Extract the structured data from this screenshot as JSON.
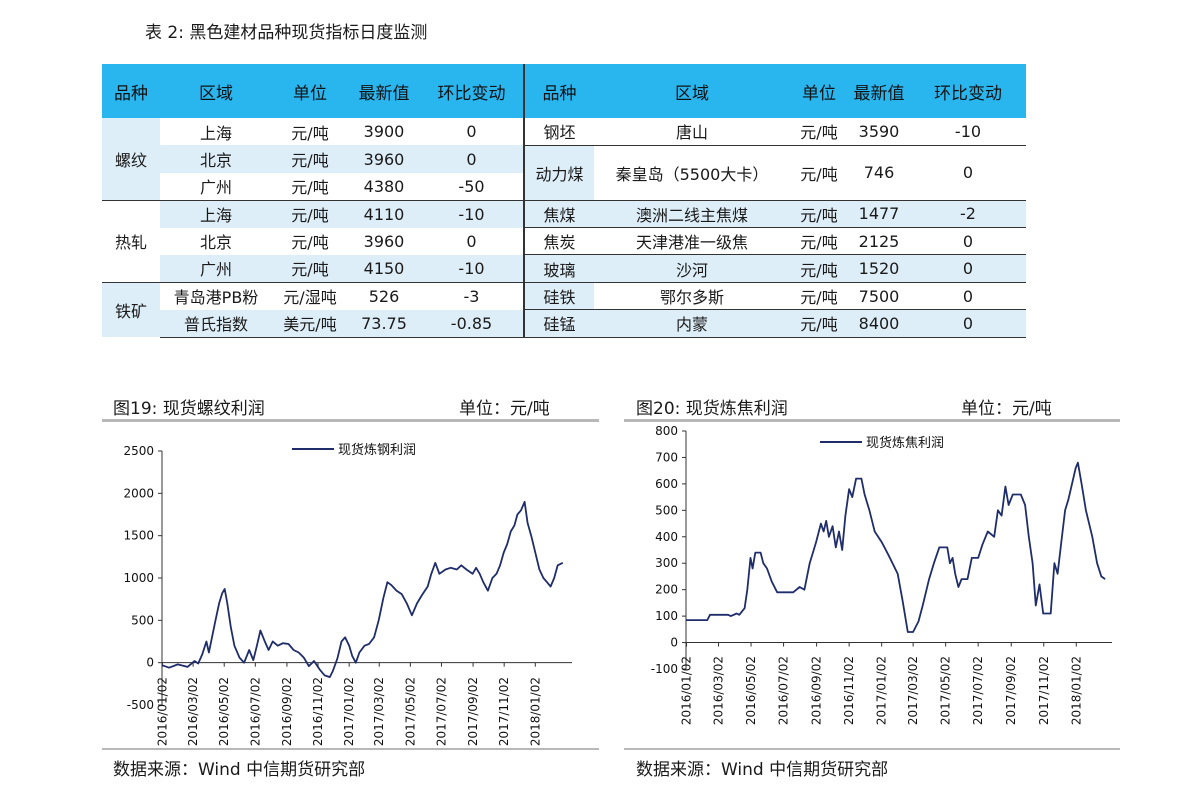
{
  "table": {
    "title": "表 2: 黑色建材品种现货指标日度监测",
    "headers_left": [
      "品种",
      "区域",
      "单位",
      "最新值",
      "环比变动"
    ],
    "headers_right": [
      "品种",
      "区域",
      "单位",
      "最新值",
      "环比变动"
    ],
    "rows": [
      {
        "lcat": "螺纹",
        "lreg": "上海",
        "lunit": "元/吨",
        "lval": "3900",
        "lchg": "0",
        "rcat": "钢坯",
        "rreg": "唐山",
        "runit": "元/吨",
        "rval": "3590",
        "rchg": "-10"
      },
      {
        "lcat": "",
        "lreg": "北京",
        "lunit": "元/吨",
        "lval": "3960",
        "lchg": "0",
        "rcat": "动力煤",
        "rreg": "秦皇岛（5500大卡）",
        "runit": "元/吨",
        "rval": "746",
        "rchg": "0"
      },
      {
        "lcat": "",
        "lreg": "广州",
        "lunit": "元/吨",
        "lval": "4380",
        "lchg": "-50",
        "rcat": "",
        "rreg": "",
        "runit": "",
        "rval": "",
        "rchg": ""
      },
      {
        "lcat": "热轧",
        "lreg": "上海",
        "lunit": "元/吨",
        "lval": "4110",
        "lchg": "-10",
        "rcat": "焦煤",
        "rreg": "澳洲二线主焦煤",
        "runit": "元/吨",
        "rval": "1477",
        "rchg": "-2"
      },
      {
        "lcat": "",
        "lreg": "北京",
        "lunit": "元/吨",
        "lval": "3960",
        "lchg": "0",
        "rcat": "焦炭",
        "rreg": "天津港准一级焦",
        "runit": "元/吨",
        "rval": "2125",
        "rchg": "0"
      },
      {
        "lcat": "",
        "lreg": "广州",
        "lunit": "元/吨",
        "lval": "4150",
        "lchg": "-10",
        "rcat": "玻璃",
        "rreg": "沙河",
        "runit": "元/吨",
        "rval": "1520",
        "rchg": "0"
      },
      {
        "lcat": "铁矿",
        "lreg": "青岛港PB粉",
        "lunit": "元/湿吨",
        "lval": "526",
        "lchg": "-3",
        "rcat": "硅铁",
        "rreg": "鄂尔多斯",
        "runit": "元/吨",
        "rval": "7500",
        "rchg": "0"
      },
      {
        "lcat": "",
        "lreg": "普氏指数",
        "lunit": "美元/吨",
        "lval": "73.75",
        "lchg": "-0.85",
        "rcat": "硅锰",
        "rreg": "内蒙",
        "runit": "元/吨",
        "rval": "8400",
        "rchg": "0"
      }
    ]
  },
  "fig19": {
    "title": "图19: 现货螺纹利润",
    "unit": "单位：元/吨",
    "source": "数据来源：Wind  中信期货研究部"
  },
  "fig20": {
    "title": "图20: 现货炼焦利润",
    "unit": "单位：元/吨",
    "source": "数据来源：Wind  中信期货研究部"
  },
  "chart_data": [
    {
      "type": "line",
      "title": "",
      "ylim": [
        -500,
        2500
      ],
      "yticks": [
        -500,
        0,
        500,
        1000,
        1500,
        2000,
        2500
      ],
      "x_start": "2016-01-01",
      "x_end": "2018-03-15",
      "xticks": [
        "2016/01/02",
        "2016/03/02",
        "2016/05/02",
        "2016/07/02",
        "2016/09/02",
        "2016/11/02",
        "2017/01/02",
        "2017/03/02",
        "2017/05/02",
        "2017/07/02",
        "2017/09/02",
        "2017/11/02",
        "2018/01/02"
      ],
      "legend": "top-left",
      "series": [
        {
          "name": "现货炼钢利润",
          "color": "#1f2d6b",
          "points": [
            [
              "2016-01-01",
              -30
            ],
            [
              "2016-01-15",
              -60
            ],
            [
              "2016-02-01",
              -20
            ],
            [
              "2016-02-20",
              -50
            ],
            [
              "2016-03-05",
              20
            ],
            [
              "2016-03-12",
              -10
            ],
            [
              "2016-03-20",
              100
            ],
            [
              "2016-03-28",
              250
            ],
            [
              "2016-04-02",
              120
            ],
            [
              "2016-04-08",
              300
            ],
            [
              "2016-04-15",
              500
            ],
            [
              "2016-04-22",
              700
            ],
            [
              "2016-04-28",
              820
            ],
            [
              "2016-05-03",
              870
            ],
            [
              "2016-05-08",
              700
            ],
            [
              "2016-05-15",
              420
            ],
            [
              "2016-05-22",
              200
            ],
            [
              "2016-06-01",
              60
            ],
            [
              "2016-06-10",
              0
            ],
            [
              "2016-06-20",
              150
            ],
            [
              "2016-06-28",
              30
            ],
            [
              "2016-07-05",
              200
            ],
            [
              "2016-07-12",
              380
            ],
            [
              "2016-07-20",
              260
            ],
            [
              "2016-07-28",
              150
            ],
            [
              "2016-08-05",
              250
            ],
            [
              "2016-08-15",
              200
            ],
            [
              "2016-08-25",
              230
            ],
            [
              "2016-09-05",
              220
            ],
            [
              "2016-09-15",
              150
            ],
            [
              "2016-09-25",
              120
            ],
            [
              "2016-10-05",
              60
            ],
            [
              "2016-10-15",
              -40
            ],
            [
              "2016-10-25",
              20
            ],
            [
              "2016-11-05",
              -80
            ],
            [
              "2016-11-15",
              -150
            ],
            [
              "2016-11-25",
              -170
            ],
            [
              "2016-12-01",
              -100
            ],
            [
              "2016-12-10",
              50
            ],
            [
              "2016-12-18",
              250
            ],
            [
              "2016-12-25",
              300
            ],
            [
              "2017-01-02",
              200
            ],
            [
              "2017-01-08",
              80
            ],
            [
              "2017-01-15",
              0
            ],
            [
              "2017-01-22",
              120
            ],
            [
              "2017-02-01",
              200
            ],
            [
              "2017-02-10",
              220
            ],
            [
              "2017-02-20",
              300
            ],
            [
              "2017-03-01",
              500
            ],
            [
              "2017-03-10",
              760
            ],
            [
              "2017-03-18",
              950
            ],
            [
              "2017-03-25",
              920
            ],
            [
              "2017-04-05",
              850
            ],
            [
              "2017-04-15",
              810
            ],
            [
              "2017-04-25",
              700
            ],
            [
              "2017-05-05",
              560
            ],
            [
              "2017-05-15",
              700
            ],
            [
              "2017-05-25",
              800
            ],
            [
              "2017-06-05",
              900
            ],
            [
              "2017-06-12",
              1050
            ],
            [
              "2017-06-20",
              1180
            ],
            [
              "2017-06-28",
              1050
            ],
            [
              "2017-07-10",
              1100
            ],
            [
              "2017-07-20",
              1120
            ],
            [
              "2017-08-01",
              1100
            ],
            [
              "2017-08-10",
              1150
            ],
            [
              "2017-08-20",
              1100
            ],
            [
              "2017-09-01",
              1050
            ],
            [
              "2017-09-08",
              1120
            ],
            [
              "2017-09-15",
              1050
            ],
            [
              "2017-09-22",
              950
            ],
            [
              "2017-10-01",
              850
            ],
            [
              "2017-10-10",
              1000
            ],
            [
              "2017-10-18",
              1050
            ],
            [
              "2017-10-25",
              1150
            ],
            [
              "2017-11-01",
              1300
            ],
            [
              "2017-11-08",
              1400
            ],
            [
              "2017-11-15",
              1550
            ],
            [
              "2017-11-22",
              1620
            ],
            [
              "2017-11-28",
              1750
            ],
            [
              "2017-12-05",
              1800
            ],
            [
              "2017-12-12",
              1900
            ],
            [
              "2017-12-18",
              1650
            ],
            [
              "2017-12-25",
              1500
            ],
            [
              "2018-01-02",
              1300
            ],
            [
              "2018-01-10",
              1100
            ],
            [
              "2018-01-18",
              1000
            ],
            [
              "2018-01-25",
              950
            ],
            [
              "2018-02-01",
              900
            ],
            [
              "2018-02-08",
              1000
            ],
            [
              "2018-02-15",
              1150
            ],
            [
              "2018-02-25",
              1180
            ]
          ]
        }
      ]
    },
    {
      "type": "line",
      "title": "",
      "ylim": [
        -100,
        800
      ],
      "yticks": [
        -100,
        0,
        100,
        200,
        300,
        400,
        500,
        600,
        700,
        800
      ],
      "x_start": "2016-01-01",
      "x_end": "2018-03-10",
      "xticks": [
        "2016/01/02",
        "2016/03/02",
        "2016/05/02",
        "2016/07/02",
        "2016/09/02",
        "2016/11/02",
        "2017/01/02",
        "2017/03/02",
        "2017/05/02",
        "2017/07/02",
        "2017/09/02",
        "2017/11/02",
        "2018/01/02"
      ],
      "legend": "top-left",
      "series": [
        {
          "name": "现货炼焦利润",
          "color": "#1f2d6b",
          "points": [
            [
              "2016-01-01",
              85
            ],
            [
              "2016-02-10",
              85
            ],
            [
              "2016-02-15",
              105
            ],
            [
              "2016-03-20",
              105
            ],
            [
              "2016-03-25",
              100
            ],
            [
              "2016-04-05",
              110
            ],
            [
              "2016-04-10",
              105
            ],
            [
              "2016-04-20",
              130
            ],
            [
              "2016-04-25",
              200
            ],
            [
              "2016-05-01",
              320
            ],
            [
              "2016-05-05",
              280
            ],
            [
              "2016-05-10",
              340
            ],
            [
              "2016-05-20",
              340
            ],
            [
              "2016-05-25",
              300
            ],
            [
              "2016-06-01",
              280
            ],
            [
              "2016-06-10",
              230
            ],
            [
              "2016-06-20",
              190
            ],
            [
              "2016-07-02",
              190
            ],
            [
              "2016-07-20",
              190
            ],
            [
              "2016-08-01",
              210
            ],
            [
              "2016-08-10",
              200
            ],
            [
              "2016-08-20",
              300
            ],
            [
              "2016-09-01",
              380
            ],
            [
              "2016-09-10",
              450
            ],
            [
              "2016-09-15",
              420
            ],
            [
              "2016-09-20",
              460
            ],
            [
              "2016-09-25",
              400
            ],
            [
              "2016-10-02",
              440
            ],
            [
              "2016-10-08",
              360
            ],
            [
              "2016-10-14",
              420
            ],
            [
              "2016-10-20",
              350
            ],
            [
              "2016-10-26",
              480
            ],
            [
              "2016-11-02",
              580
            ],
            [
              "2016-11-08",
              550
            ],
            [
              "2016-11-15",
              620
            ],
            [
              "2016-11-25",
              620
            ],
            [
              "2016-12-01",
              560
            ],
            [
              "2016-12-10",
              500
            ],
            [
              "2016-12-20",
              420
            ],
            [
              "2017-01-02",
              380
            ],
            [
              "2017-01-15",
              330
            ],
            [
              "2017-02-01",
              260
            ],
            [
              "2017-02-10",
              160
            ],
            [
              "2017-02-20",
              40
            ],
            [
              "2017-03-02",
              40
            ],
            [
              "2017-03-12",
              80
            ],
            [
              "2017-03-20",
              140
            ],
            [
              "2017-04-01",
              240
            ],
            [
              "2017-04-10",
              300
            ],
            [
              "2017-04-20",
              360
            ],
            [
              "2017-05-05",
              360
            ],
            [
              "2017-05-10",
              300
            ],
            [
              "2017-05-15",
              320
            ],
            [
              "2017-05-20",
              260
            ],
            [
              "2017-05-26",
              210
            ],
            [
              "2017-06-01",
              240
            ],
            [
              "2017-06-12",
              240
            ],
            [
              "2017-06-20",
              320
            ],
            [
              "2017-07-02",
              320
            ],
            [
              "2017-07-10",
              370
            ],
            [
              "2017-07-20",
              420
            ],
            [
              "2017-08-01",
              400
            ],
            [
              "2017-08-08",
              500
            ],
            [
              "2017-08-15",
              480
            ],
            [
              "2017-08-22",
              590
            ],
            [
              "2017-08-28",
              520
            ],
            [
              "2017-09-05",
              560
            ],
            [
              "2017-09-20",
              560
            ],
            [
              "2017-09-28",
              520
            ],
            [
              "2017-10-05",
              400
            ],
            [
              "2017-10-12",
              300
            ],
            [
              "2017-10-18",
              140
            ],
            [
              "2017-10-25",
              220
            ],
            [
              "2017-11-01",
              110
            ],
            [
              "2017-11-15",
              110
            ],
            [
              "2017-11-22",
              300
            ],
            [
              "2017-11-28",
              260
            ],
            [
              "2017-12-05",
              380
            ],
            [
              "2017-12-12",
              500
            ],
            [
              "2017-12-18",
              540
            ],
            [
              "2017-12-25",
              600
            ],
            [
              "2018-01-01",
              660
            ],
            [
              "2018-01-05",
              680
            ],
            [
              "2018-01-12",
              600
            ],
            [
              "2018-01-20",
              500
            ],
            [
              "2018-02-01",
              400
            ],
            [
              "2018-02-10",
              300
            ],
            [
              "2018-02-18",
              250
            ],
            [
              "2018-02-25",
              240
            ]
          ]
        }
      ]
    }
  ]
}
